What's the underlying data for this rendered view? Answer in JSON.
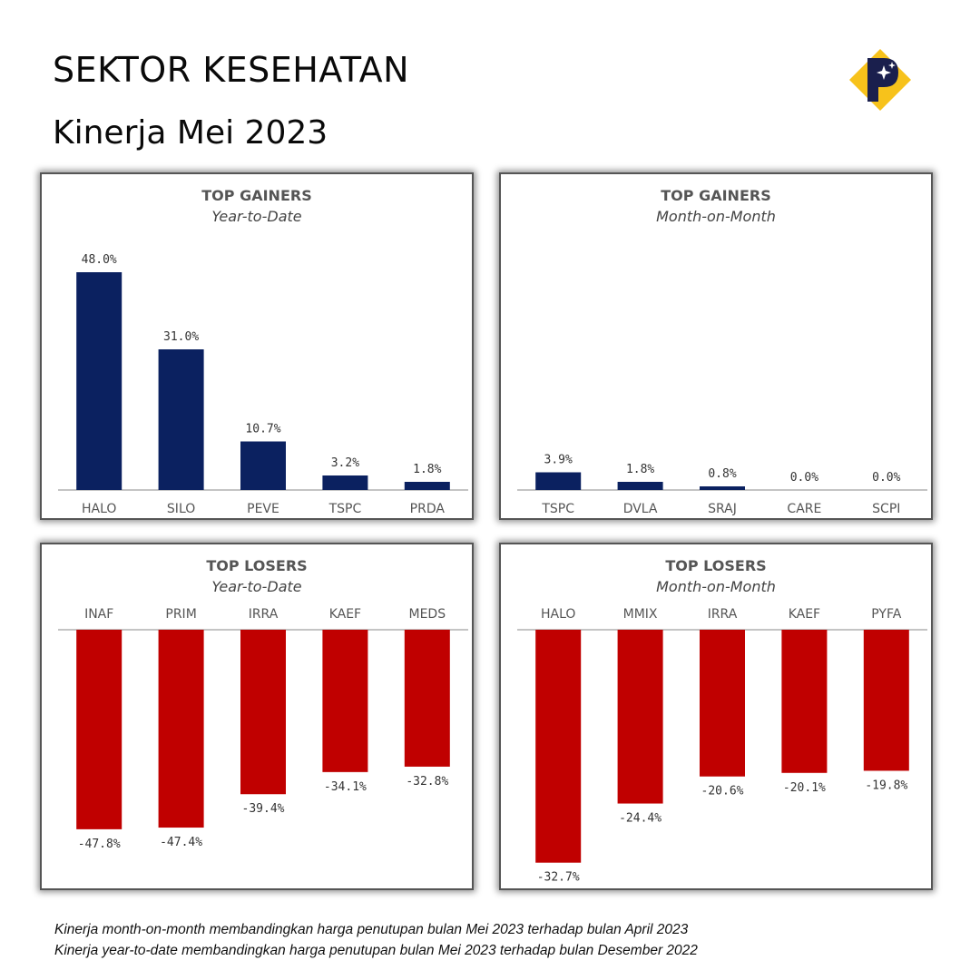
{
  "header": {
    "title": "SEKTOR KESEHATAN",
    "subtitle": "Kinerja Mei 2023",
    "logo_letter": "P"
  },
  "colors": {
    "gain": "#0b2160",
    "loss": "#c00000",
    "logo_gold": "#f7c21b",
    "logo_navy": "#1a1f4d"
  },
  "chart_data": [
    {
      "type": "bar",
      "title": "TOP GAINERS",
      "subtitle": "Year-to-Date",
      "categories": [
        "HALO",
        "SILO",
        "PEVE",
        "TSPC",
        "PRDA"
      ],
      "values": [
        48.0,
        31.0,
        10.7,
        3.2,
        1.8
      ],
      "value_labels": [
        "48.0%",
        "31.0%",
        "10.7%",
        "3.2%",
        "1.8%"
      ],
      "color": "#0b2160",
      "unit": "%"
    },
    {
      "type": "bar",
      "title": "TOP GAINERS",
      "subtitle": "Month-on-Month",
      "categories": [
        "TSPC",
        "DVLA",
        "SRAJ",
        "CARE",
        "SCPI"
      ],
      "values": [
        3.9,
        1.8,
        0.8,
        0.0,
        0.0
      ],
      "value_labels": [
        "3.9%",
        "1.8%",
        "0.8%",
        "0.0%",
        "0.0%"
      ],
      "color": "#0b2160",
      "unit": "%"
    },
    {
      "type": "bar",
      "title": "TOP LOSERS",
      "subtitle": "Year-to-Date",
      "categories": [
        "INAF",
        "PRIM",
        "IRRA",
        "KAEF",
        "MEDS"
      ],
      "values": [
        -47.8,
        -47.4,
        -39.4,
        -34.1,
        -32.8
      ],
      "value_labels": [
        "-47.8%",
        "-47.4%",
        "-39.4%",
        "-34.1%",
        "-32.8%"
      ],
      "color": "#c00000",
      "unit": "%"
    },
    {
      "type": "bar",
      "title": "TOP LOSERS",
      "subtitle": "Month-on-Month",
      "categories": [
        "HALO",
        "MMIX",
        "IRRA",
        "KAEF",
        "PYFA"
      ],
      "values": [
        -32.7,
        -24.4,
        -20.6,
        -20.1,
        -19.8
      ],
      "value_labels": [
        "-32.7%",
        "-24.4%",
        "-20.6%",
        "-20.1%",
        "-19.8%"
      ],
      "color": "#c00000",
      "unit": "%"
    }
  ],
  "footnotes": [
    "Kinerja month-on-month membandingkan harga penutupan bulan Mei 2023 terhadap bulan April 2023",
    "Kinerja year-to-date membandingkan harga penutupan bulan Mei 2023 terhadap bulan Desember 2022"
  ]
}
